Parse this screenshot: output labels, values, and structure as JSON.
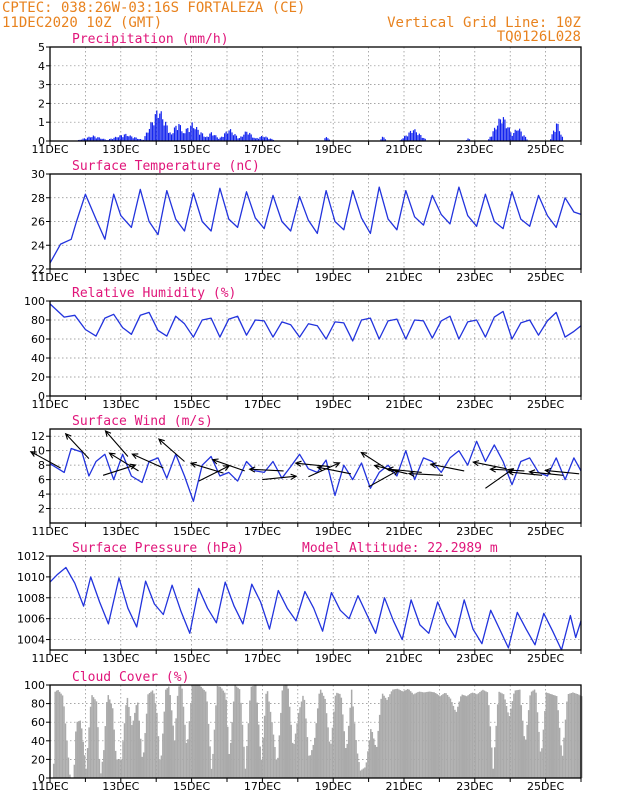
{
  "header": {
    "line1_left": "CPTEC:   038:26W-03:16S  FORTALEZA (CE)",
    "line2_left": "11DEC2020 10Z (GMT)",
    "line1_right": "Vertical Grid Line: 10Z",
    "line2_right": "TQ0126L028"
  },
  "colors": {
    "header": "#e8821e",
    "title": "#e0157a",
    "line": "#2233dd",
    "bar": "#1122ee",
    "cloud": "#aaaaaa",
    "arrow": "#000000"
  },
  "x_tick_labels": [
    "11DEC",
    "13DEC",
    "15DEC",
    "17DEC",
    "19DEC",
    "21DEC",
    "23DEC",
    "25DEC"
  ],
  "x_range_days": [
    0,
    15
  ],
  "chart_data": [
    {
      "id": "precip",
      "type": "bar",
      "title": "Precipitation (mm/h)",
      "ylim": [
        0,
        5
      ],
      "yticks": [
        0,
        1,
        2,
        3,
        4,
        5
      ],
      "bursts": [
        {
          "center": 1.2,
          "width": 0.5,
          "peak": 0.3
        },
        {
          "center": 2.1,
          "width": 0.6,
          "peak": 0.4
        },
        {
          "center": 3.05,
          "width": 0.45,
          "peak": 1.9
        },
        {
          "center": 3.6,
          "width": 0.3,
          "peak": 1.1
        },
        {
          "center": 4.0,
          "width": 0.5,
          "peak": 1.0
        },
        {
          "center": 4.55,
          "width": 0.3,
          "peak": 0.5
        },
        {
          "center": 5.05,
          "width": 0.35,
          "peak": 0.7
        },
        {
          "center": 5.55,
          "width": 0.3,
          "peak": 0.6
        },
        {
          "center": 6.0,
          "width": 0.4,
          "peak": 0.3
        },
        {
          "center": 7.8,
          "width": 0.1,
          "peak": 0.3
        },
        {
          "center": 9.4,
          "width": 0.1,
          "peak": 0.3
        },
        {
          "center": 10.25,
          "width": 0.4,
          "peak": 0.7
        },
        {
          "center": 11.8,
          "width": 0.1,
          "peak": 0.15
        },
        {
          "center": 12.75,
          "width": 0.4,
          "peak": 1.5
        },
        {
          "center": 13.2,
          "width": 0.3,
          "peak": 0.8
        },
        {
          "center": 14.3,
          "width": 0.2,
          "peak": 1.1
        }
      ]
    },
    {
      "id": "temp",
      "type": "line",
      "title": "Surface Temperature (nC)",
      "ylim": [
        22,
        30
      ],
      "yticks": [
        22,
        24,
        26,
        28,
        30
      ],
      "x": [
        0,
        0.3,
        0.6,
        0.75,
        1.0,
        1.3,
        1.55,
        1.8,
        2.0,
        2.3,
        2.55,
        2.8,
        3.05,
        3.3,
        3.55,
        3.8,
        4.05,
        4.3,
        4.55,
        4.8,
        5.05,
        5.3,
        5.55,
        5.8,
        6.05,
        6.3,
        6.55,
        6.8,
        7.05,
        7.3,
        7.55,
        7.8,
        8.05,
        8.3,
        8.55,
        8.8,
        9.05,
        9.3,
        9.55,
        9.8,
        10.05,
        10.3,
        10.55,
        10.8,
        11.05,
        11.3,
        11.55,
        11.8,
        12.05,
        12.3,
        12.55,
        12.8,
        13.05,
        13.3,
        13.55,
        13.8,
        14.05,
        14.3,
        14.55,
        14.8,
        15.0
      ],
      "y": [
        22.5,
        24.1,
        24.5,
        26.0,
        28.3,
        26.2,
        24.5,
        28.3,
        26.5,
        25.5,
        28.7,
        26.0,
        24.9,
        28.6,
        26.2,
        25.2,
        28.4,
        26.0,
        25.2,
        28.8,
        26.2,
        25.5,
        28.5,
        26.3,
        25.4,
        28.2,
        26.0,
        25.2,
        28.1,
        26.1,
        25.0,
        28.6,
        26.0,
        25.3,
        28.6,
        26.3,
        25.0,
        28.9,
        26.2,
        25.3,
        28.6,
        26.4,
        25.7,
        28.2,
        26.6,
        25.8,
        28.9,
        26.5,
        25.6,
        28.3,
        26.0,
        25.4,
        28.5,
        26.2,
        25.6,
        28.2,
        26.5,
        25.5,
        28.0,
        26.8,
        26.6
      ]
    },
    {
      "id": "rh",
      "type": "line",
      "title": "Relative Humidity (%)",
      "ylim": [
        0,
        100
      ],
      "yticks": [
        0,
        20,
        40,
        60,
        80,
        100
      ],
      "x": [
        0,
        0.4,
        0.7,
        1.0,
        1.3,
        1.55,
        1.8,
        2.05,
        2.3,
        2.55,
        2.8,
        3.05,
        3.3,
        3.55,
        3.8,
        4.05,
        4.3,
        4.55,
        4.8,
        5.05,
        5.3,
        5.55,
        5.8,
        6.05,
        6.3,
        6.55,
        6.8,
        7.05,
        7.3,
        7.55,
        7.8,
        8.05,
        8.3,
        8.55,
        8.8,
        9.05,
        9.3,
        9.55,
        9.8,
        10.05,
        10.3,
        10.55,
        10.8,
        11.05,
        11.3,
        11.55,
        11.8,
        12.05,
        12.3,
        12.55,
        12.8,
        13.05,
        13.3,
        13.55,
        13.8,
        14.05,
        14.3,
        14.55,
        14.8,
        15.0
      ],
      "y": [
        97,
        83,
        85,
        70,
        63,
        82,
        86,
        72,
        65,
        85,
        88,
        69,
        63,
        84,
        76,
        62,
        80,
        82,
        62,
        81,
        84,
        64,
        80,
        79,
        62,
        78,
        75,
        62,
        76,
        74,
        60,
        78,
        77,
        58,
        80,
        82,
        60,
        79,
        81,
        60,
        80,
        79,
        61,
        79,
        84,
        60,
        78,
        80,
        62,
        83,
        89,
        60,
        77,
        80,
        64,
        79,
        88,
        62,
        68,
        74
      ]
    },
    {
      "id": "wind",
      "type": "line",
      "title": "Surface Wind (m/s)",
      "ylim": [
        0,
        13
      ],
      "yticks": [
        2,
        4,
        6,
        8,
        10,
        12
      ],
      "x": [
        0,
        0.4,
        0.6,
        0.9,
        1.1,
        1.3,
        1.55,
        1.8,
        2.05,
        2.3,
        2.6,
        2.8,
        3.05,
        3.3,
        3.55,
        3.8,
        4.05,
        4.3,
        4.55,
        4.8,
        5.05,
        5.3,
        5.55,
        5.8,
        6.05,
        6.3,
        6.55,
        6.8,
        7.05,
        7.3,
        7.55,
        7.8,
        8.05,
        8.3,
        8.55,
        8.8,
        9.05,
        9.3,
        9.55,
        9.8,
        10.05,
        10.3,
        10.55,
        10.8,
        11.05,
        11.3,
        11.55,
        11.8,
        12.05,
        12.3,
        12.55,
        12.8,
        13.05,
        13.3,
        13.55,
        13.8,
        14.05,
        14.3,
        14.55,
        14.8,
        15.0
      ],
      "y": [
        8.2,
        7.0,
        10.3,
        9.8,
        6.5,
        8.5,
        9.5,
        6.0,
        9.5,
        6.5,
        5.6,
        8.5,
        9.0,
        6.2,
        9.5,
        6.5,
        3.0,
        8.0,
        9.2,
        6.5,
        7.0,
        5.8,
        8.5,
        7.2,
        7.0,
        8.5,
        6.2,
        7.8,
        9.5,
        7.5,
        7.0,
        8.7,
        3.8,
        8.0,
        6.0,
        8.3,
        4.8,
        7.0,
        8.0,
        6.5,
        10.0,
        6.0,
        9.0,
        8.5,
        7.0,
        9.0,
        10.0,
        8.0,
        11.3,
        8.5,
        10.8,
        8.5,
        5.3,
        8.5,
        9.0,
        7.0,
        6.5,
        9.0,
        6.0,
        9.0,
        7.2
      ],
      "arrows": [
        {
          "x": 0.3,
          "y": 7.6,
          "u": -1,
          "v": 0.55
        },
        {
          "x": 1.1,
          "y": 8.9,
          "u": -0.75,
          "v": 0.8
        },
        {
          "x": 1.5,
          "y": 6.6,
          "u": 0.95,
          "v": 0.3
        },
        {
          "x": 2.2,
          "y": 9.2,
          "u": -0.7,
          "v": 0.8
        },
        {
          "x": 2.5,
          "y": 7.2,
          "u": -0.9,
          "v": 0.55
        },
        {
          "x": 3.2,
          "y": 7.6,
          "u": -1,
          "v": 0.45
        },
        {
          "x": 3.8,
          "y": 8.5,
          "u": -0.8,
          "v": 0.7
        },
        {
          "x": 4.2,
          "y": 5.8,
          "u": 0.9,
          "v": 0.45
        },
        {
          "x": 4.9,
          "y": 6.9,
          "u": -1,
          "v": 0.3
        },
        {
          "x": 5.5,
          "y": 7.2,
          "u": -1,
          "v": 0.35
        },
        {
          "x": 6.0,
          "y": 6.0,
          "u": 1,
          "v": 0.1
        },
        {
          "x": 6.6,
          "y": 7.2,
          "u": -1,
          "v": 0.05
        },
        {
          "x": 7.3,
          "y": 6.4,
          "u": 0.9,
          "v": 0.4
        },
        {
          "x": 7.9,
          "y": 7.8,
          "u": -1,
          "v": 0.1
        },
        {
          "x": 8.5,
          "y": 6.8,
          "u": -1,
          "v": 0.2
        },
        {
          "x": 9.0,
          "y": 5.0,
          "u": 0.9,
          "v": 0.5
        },
        {
          "x": 9.6,
          "y": 7.2,
          "u": -0.85,
          "v": 0.55
        },
        {
          "x": 10.1,
          "y": 6.8,
          "u": -1,
          "v": 0.25
        },
        {
          "x": 10.5,
          "y": 7.0,
          "u": -1,
          "v": 0.1
        },
        {
          "x": 11.1,
          "y": 6.6,
          "u": -1,
          "v": 0.05
        },
        {
          "x": 11.7,
          "y": 7.2,
          "u": -1,
          "v": 0.2
        },
        {
          "x": 12.3,
          "y": 4.8,
          "u": 0.85,
          "v": 0.6
        },
        {
          "x": 12.9,
          "y": 7.5,
          "u": -1,
          "v": 0.2
        },
        {
          "x": 13.4,
          "y": 7.2,
          "u": -1,
          "v": 0.05
        },
        {
          "x": 13.9,
          "y": 6.6,
          "u": -1,
          "v": 0.1
        },
        {
          "x": 14.5,
          "y": 6.6,
          "u": -1,
          "v": 0.1
        },
        {
          "x": 14.95,
          "y": 6.8,
          "u": -1,
          "v": 0.1
        }
      ]
    },
    {
      "id": "pressure",
      "type": "line",
      "title": "Surface Pressure (hPa)",
      "title_right": "Model Altitude: 22.2989 m",
      "ylim": [
        1003,
        1012
      ],
      "yticks": [
        1004,
        1006,
        1008,
        1010,
        1012
      ],
      "x": [
        0,
        0.2,
        0.45,
        0.7,
        0.95,
        1.15,
        1.4,
        1.65,
        1.95,
        2.2,
        2.45,
        2.7,
        2.95,
        3.2,
        3.45,
        3.7,
        3.95,
        4.2,
        4.45,
        4.7,
        4.95,
        5.2,
        5.45,
        5.7,
        5.95,
        6.2,
        6.45,
        6.7,
        6.95,
        7.2,
        7.45,
        7.7,
        7.95,
        8.2,
        8.45,
        8.7,
        8.95,
        9.2,
        9.45,
        9.7,
        9.95,
        10.2,
        10.45,
        10.7,
        10.95,
        11.2,
        11.45,
        11.7,
        11.95,
        12.2,
        12.45,
        12.7,
        12.95,
        13.2,
        13.45,
        13.7,
        13.95,
        14.2,
        14.45,
        14.7,
        14.85,
        15.0
      ],
      "y": [
        1009.5,
        1010.2,
        1010.9,
        1009.4,
        1007.2,
        1010.0,
        1007.6,
        1005.5,
        1009.9,
        1007.0,
        1005.2,
        1009.6,
        1007.4,
        1006.4,
        1009.2,
        1006.7,
        1004.6,
        1008.9,
        1007.0,
        1005.6,
        1009.5,
        1007.2,
        1005.5,
        1009.3,
        1007.6,
        1005.0,
        1008.7,
        1007.0,
        1005.8,
        1008.6,
        1007.0,
        1004.8,
        1008.5,
        1006.8,
        1006.0,
        1008.2,
        1006.4,
        1004.6,
        1008.0,
        1005.8,
        1004.0,
        1007.8,
        1005.4,
        1004.6,
        1007.6,
        1005.6,
        1004.2,
        1007.8,
        1005.0,
        1003.6,
        1006.8,
        1005.0,
        1003.2,
        1006.6,
        1005.0,
        1003.5,
        1006.5,
        1004.8,
        1003.0,
        1006.3,
        1004.2,
        1005.8
      ]
    },
    {
      "id": "cloud",
      "type": "area",
      "title": "Cloud Cover (%)",
      "ylim": [
        0,
        100
      ],
      "yticks": [
        0,
        20,
        40,
        60,
        80,
        100
      ],
      "x": [
        0,
        0.08,
        0.1,
        0.2,
        0.35,
        0.55,
        0.65,
        0.72,
        0.85,
        1.0,
        1.15,
        1.3,
        1.4,
        1.5,
        1.6,
        1.75,
        1.85,
        2.0,
        2.15,
        2.3,
        2.45,
        2.6,
        2.75,
        2.9,
        3.0,
        3.1,
        3.25,
        3.35,
        3.5,
        3.6,
        3.7,
        3.85,
        4.0,
        4.2,
        4.4,
        4.55,
        4.7,
        4.8,
        4.95,
        5.05,
        5.2,
        5.35,
        5.5,
        5.65,
        5.8,
        5.95,
        6.1,
        6.25,
        6.4,
        6.55,
        6.7,
        6.85,
        7.0,
        7.15,
        7.3,
        7.45,
        7.6,
        7.75,
        7.9,
        8.05,
        8.2,
        8.35,
        8.5,
        8.65,
        8.75,
        8.9,
        9.05,
        9.2,
        9.35,
        9.5,
        9.65,
        9.8,
        9.95,
        10.1,
        10.25,
        10.4,
        10.55,
        10.7,
        10.85,
        11.0,
        11.15,
        11.3,
        11.45,
        11.6,
        11.75,
        11.9,
        12.05,
        12.2,
        12.35,
        12.5,
        12.65,
        12.8,
        12.95,
        13.1,
        13.25,
        13.4,
        13.55,
        13.7,
        13.85,
        14.0,
        14.15,
        14.3,
        14.45,
        14.6,
        14.75,
        14.9,
        15.0
      ],
      "y": [
        0,
        0,
        92,
        95,
        88,
        0,
        0,
        60,
        62,
        10,
        90,
        82,
        0,
        30,
        92,
        75,
        20,
        20,
        90,
        55,
        85,
        15,
        90,
        95,
        70,
        10,
        95,
        99,
        40,
        98,
        100,
        30,
        100,
        100,
        92,
        5,
        99,
        98,
        90,
        20,
        100,
        95,
        10,
        98,
        100,
        15,
        100,
        60,
        12,
        99,
        100,
        30,
        70,
        92,
        20,
        40,
        97,
        85,
        30,
        92,
        90,
        25,
        95,
        30,
        8,
        12,
        55,
        30,
        92,
        84,
        95,
        96,
        93,
        96,
        90,
        93,
        92,
        93,
        92,
        88,
        92,
        85,
        70,
        90,
        88,
        92,
        90,
        95,
        92,
        10,
        93,
        90,
        65,
        94,
        95,
        35,
        92,
        96,
        20,
        92,
        90,
        88,
        20,
        90,
        92,
        90,
        88
      ]
    }
  ]
}
